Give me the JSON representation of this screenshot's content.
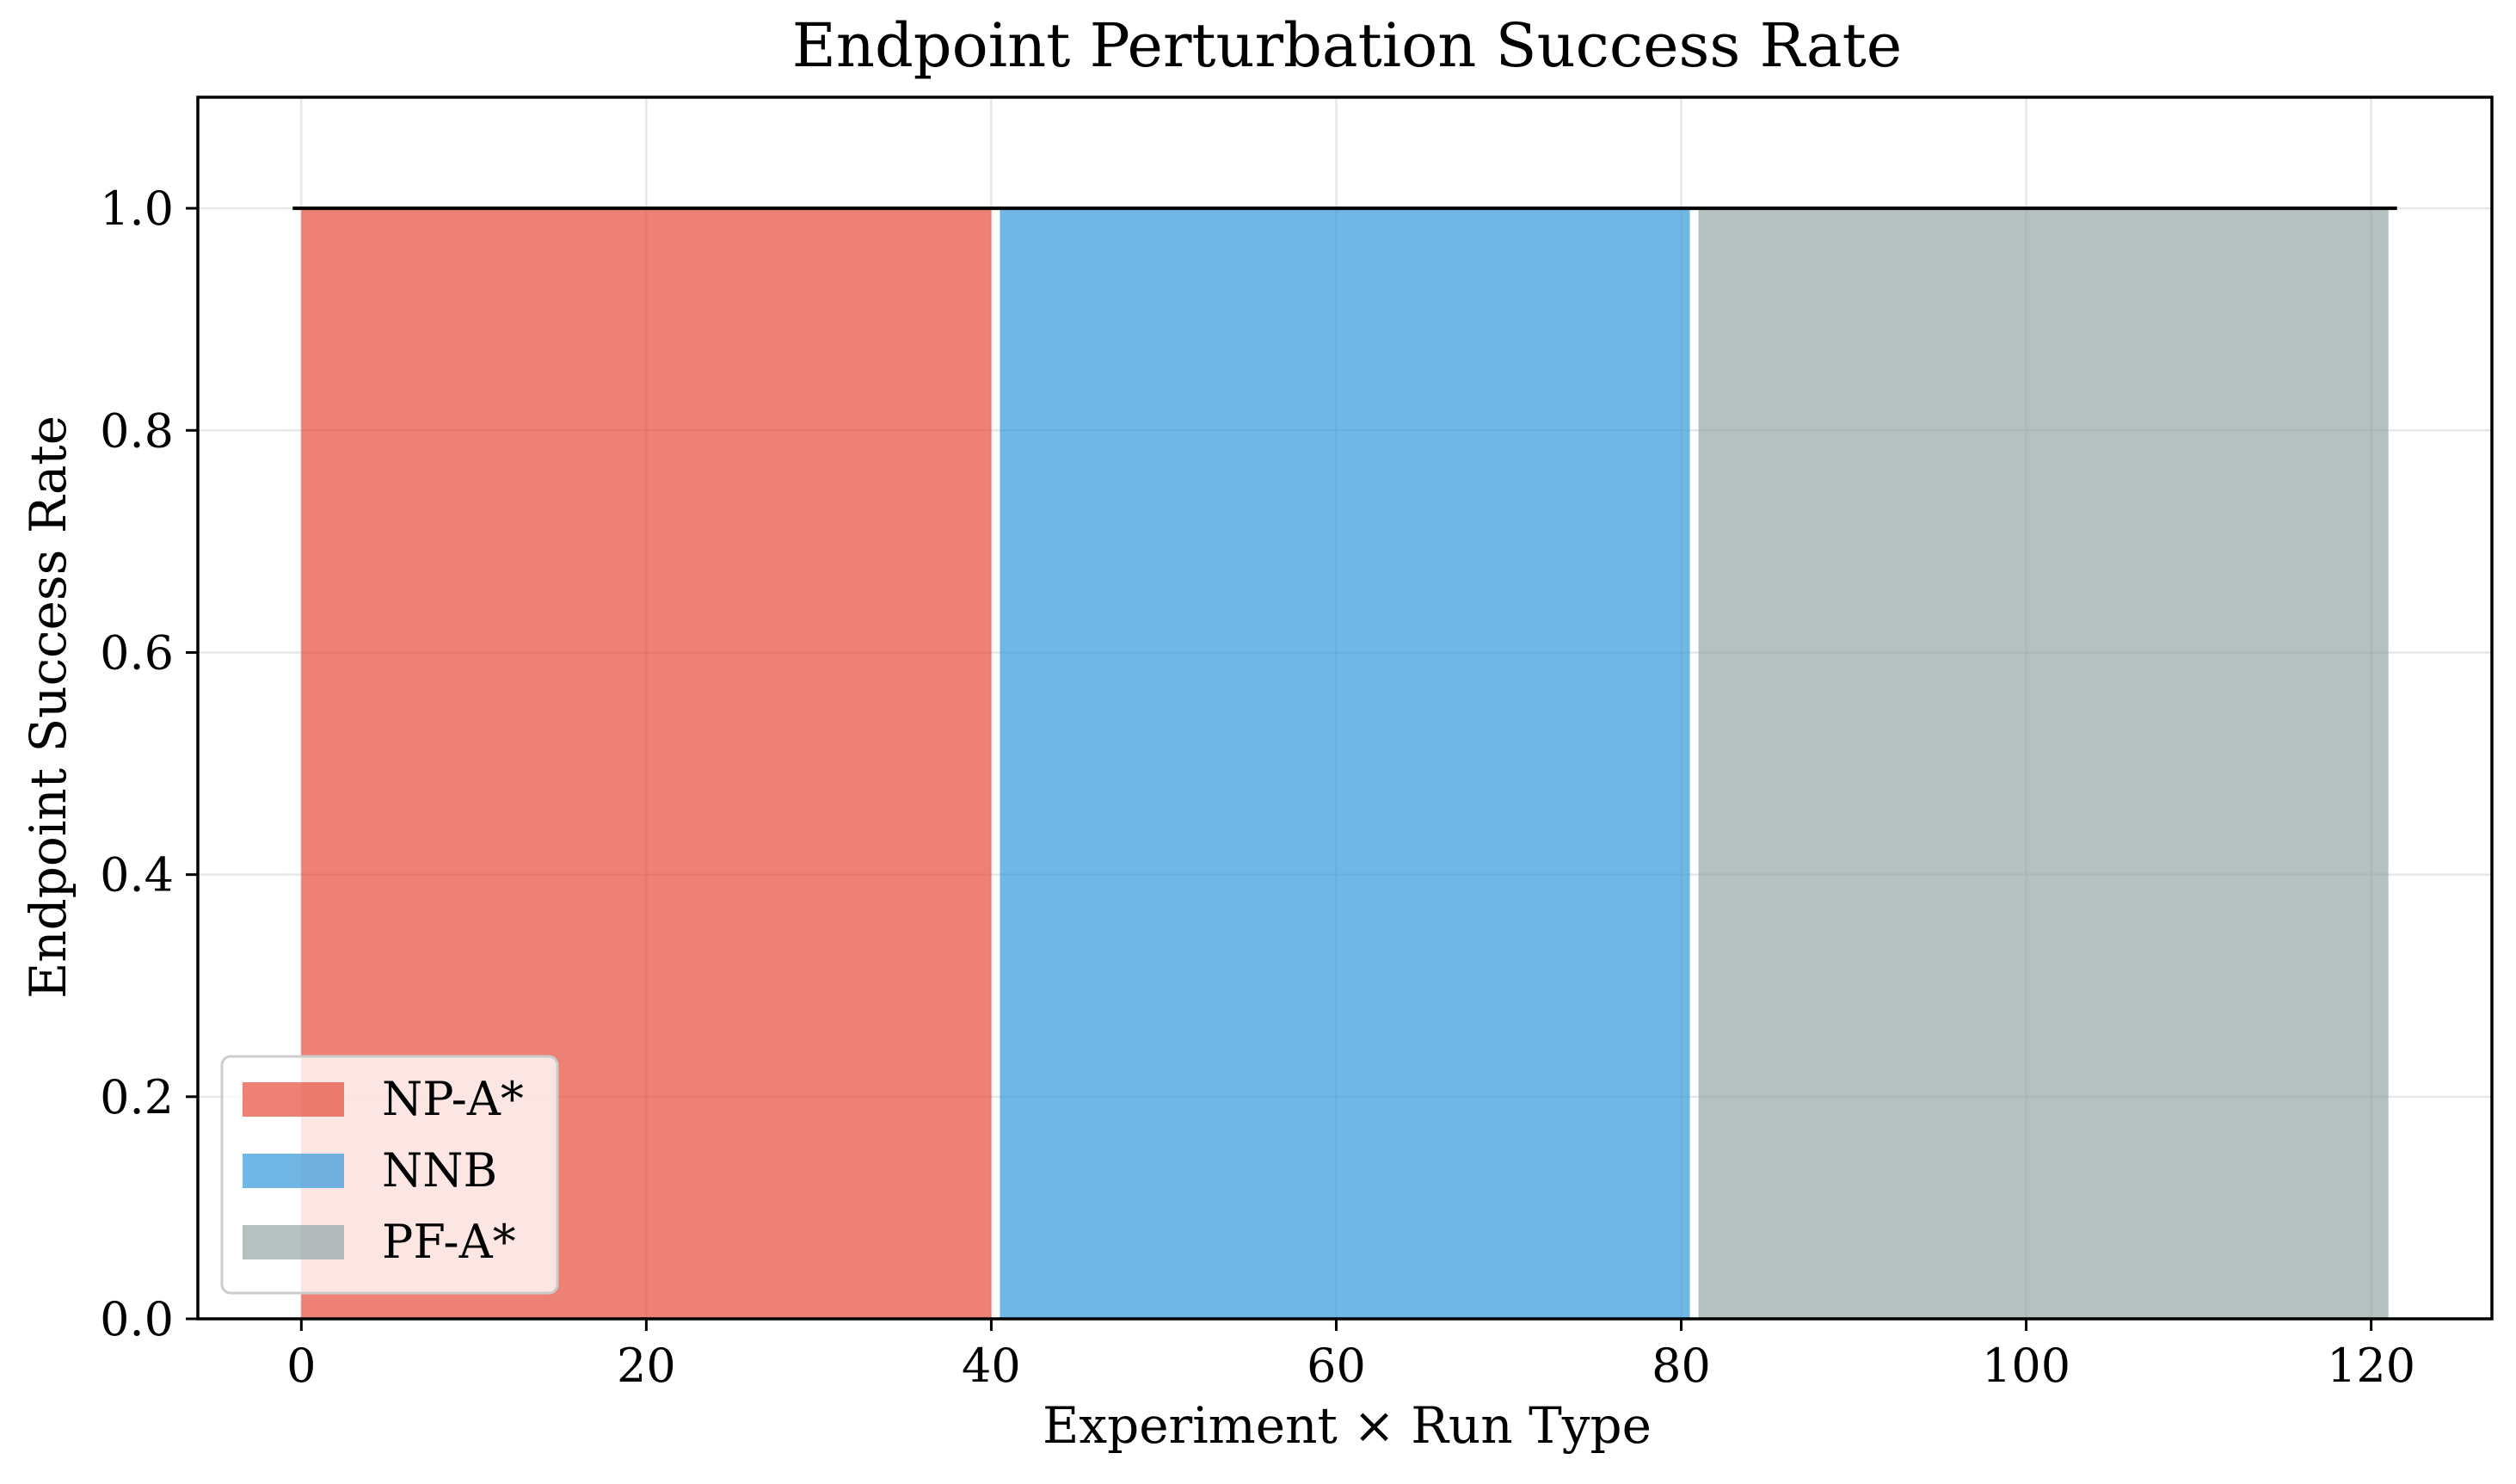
{
  "chart_data": {
    "type": "bar",
    "title": "Endpoint Perturbation Success Rate",
    "xlabel": "Experiment × Run Type",
    "ylabel": "Endpoint Success Rate",
    "xlim": [
      -6,
      127
    ],
    "ylim": [
      0,
      1.1
    ],
    "xticks": [
      0,
      20,
      40,
      60,
      80,
      100,
      120
    ],
    "yticks": [
      0.0,
      0.2,
      0.4,
      0.6,
      0.8,
      1.0
    ],
    "xtick_labels": [
      "0",
      "20",
      "40",
      "60",
      "80",
      "100",
      "120"
    ],
    "ytick_labels": [
      "0.0",
      "0.2",
      "0.4",
      "0.6",
      "0.8",
      "1.0"
    ],
    "grid": true,
    "legend_position": "lower-left",
    "reference_line": {
      "y": 1.0,
      "x_range": [
        -0.5,
        121.5
      ]
    },
    "series": [
      {
        "name": "NP-A*",
        "color": "#e74c3c",
        "x_range": [
          0,
          40
        ],
        "value": 1.0
      },
      {
        "name": "NNB",
        "color": "#3498db",
        "x_range": [
          40.5,
          80.5
        ],
        "value": 1.0
      },
      {
        "name": "PF-A*",
        "color": "#95a5a6",
        "x_range": [
          81,
          121
        ],
        "value": 1.0
      }
    ]
  }
}
